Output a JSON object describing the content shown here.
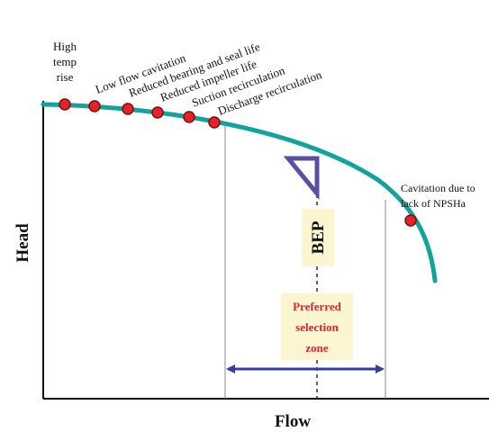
{
  "labels": {
    "high_temp_rise": [
      "High",
      "temp",
      "rise"
    ],
    "low_flow_cavitation": "Low flow cavitation",
    "reduced_bearing_seal_life": "Reduced bearing and seal life",
    "reduced_impeller_life": "Reduced impeller life",
    "suction_recirculation": "Suction recirculation",
    "discharge_recirculation": "Discharge recirculation",
    "cavitation_npsha": [
      "Cavitation due to",
      "lack of NPSHa"
    ],
    "bep": "BEP",
    "preferred_zone": [
      "Preferred",
      "selection",
      "zone"
    ]
  },
  "axes": {
    "x_label": "Flow",
    "y_label": "Head"
  },
  "colors": {
    "curve": "#14a39a",
    "marker_fill": "#e8202a",
    "marker_stroke": "#7a0d0d",
    "arrow": "#3b3aa0",
    "bep_triangle": "#5a4fa0",
    "label_box": "#fbf6cf",
    "zone_text": "#e0203a",
    "axis": "#111111",
    "guide": "#8a8a8a"
  }
}
